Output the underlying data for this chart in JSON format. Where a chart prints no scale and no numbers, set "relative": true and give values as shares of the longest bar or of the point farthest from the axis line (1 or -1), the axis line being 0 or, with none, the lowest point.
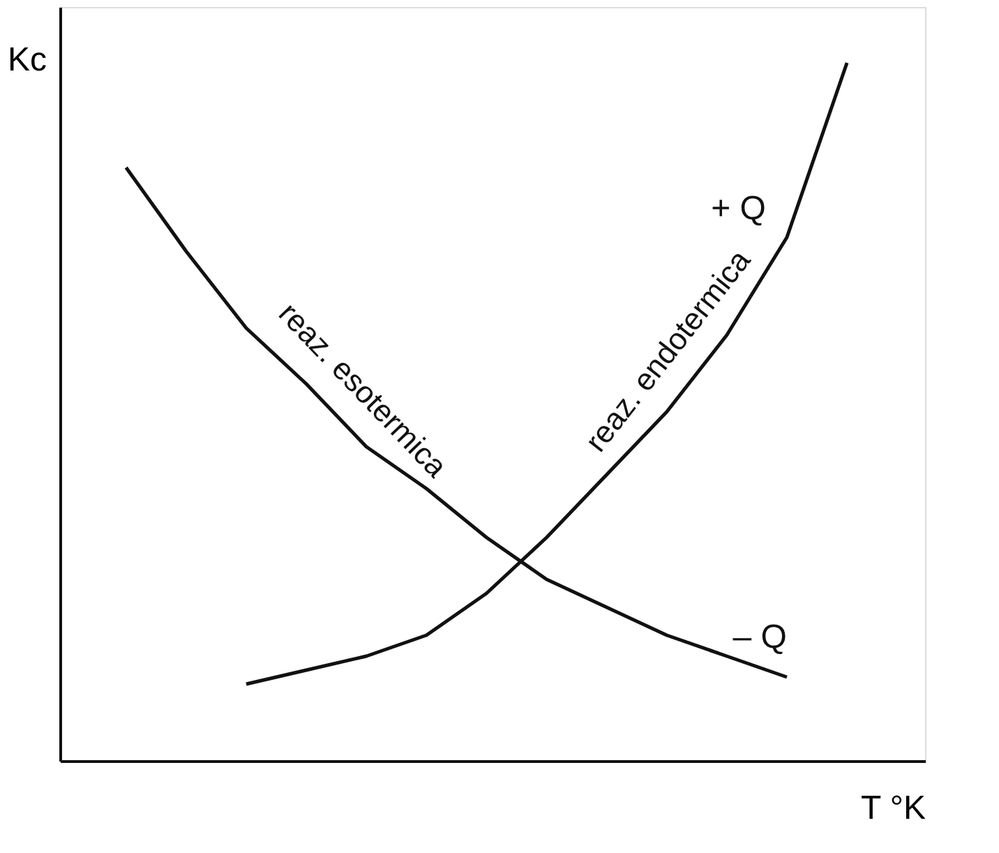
{
  "chart_data": {
    "type": "line",
    "relative": true,
    "xlabel": "T °K",
    "ylabel": "Kc",
    "categories": [
      null,
      null,
      null,
      null,
      null,
      null,
      null,
      null,
      null,
      null,
      null,
      null,
      null
    ],
    "series": [
      {
        "name": "reaz. esotermica",
        "color": "#111111",
        "values": [
          0.85,
          0.73,
          0.62,
          0.54,
          0.45,
          0.39,
          0.32,
          0.26,
          0.22,
          0.18,
          0.15,
          0.12,
          null
        ]
      },
      {
        "name": "reaz. endotermica",
        "color": "#111111",
        "values": [
          null,
          null,
          0.11,
          0.13,
          0.15,
          0.18,
          0.24,
          0.32,
          0.41,
          0.5,
          0.61,
          0.75,
          1.0
        ]
      }
    ],
    "annotations": [
      "– Q",
      "+ Q"
    ],
    "line_style": "solid",
    "marker": "none",
    "grid": false,
    "legend": false
  }
}
